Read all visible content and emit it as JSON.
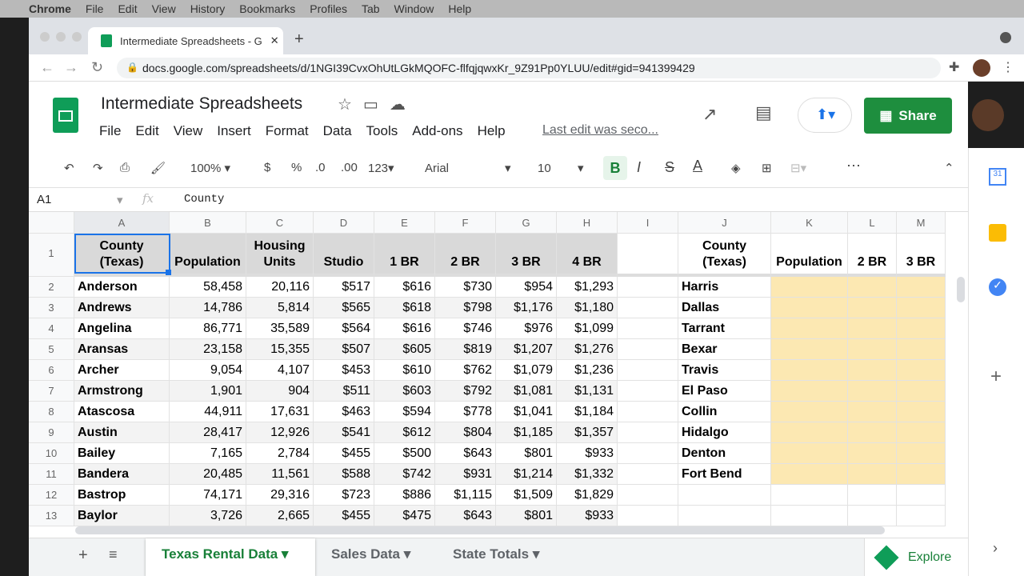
{
  "macos": {
    "apple": "",
    "menu": [
      "Chrome",
      "File",
      "Edit",
      "View",
      "History",
      "Bookmarks",
      "Profiles",
      "Tab",
      "Window",
      "Help"
    ]
  },
  "browser": {
    "tab_title": "Intermediate Spreadsheets - G",
    "url": "docs.google.com/spreadsheets/d/1NGI39CvxOhUtLGkMQOFC-flfqjqwxKr_9Z91Pp0YLUU/edit#gid=941399429"
  },
  "doc": {
    "title": "Intermediate Spreadsheets",
    "menu": [
      "File",
      "Edit",
      "View",
      "Insert",
      "Format",
      "Data",
      "Tools",
      "Add-ons",
      "Help"
    ],
    "last_edit": "Last edit was seco...",
    "share": "Share"
  },
  "toolbar": {
    "zoom": "100%",
    "currency": "$",
    "percent": "%",
    "dec_less": ".0",
    "dec_more": ".00",
    "format": "123",
    "font": "Arial",
    "size": "10",
    "bold": "B",
    "italic": "I",
    "strike": "S",
    "text_color": "A",
    "more": "⋯"
  },
  "formula_bar": {
    "cell_ref": "A1",
    "fx": "fx",
    "value": "County"
  },
  "columns": [
    "A",
    "B",
    "C",
    "D",
    "E",
    "F",
    "G",
    "H",
    "I",
    "J",
    "K",
    "L",
    "M"
  ],
  "header_row": [
    "County (Texas)",
    "Population",
    "Housing Units",
    "Studio",
    "1 BR",
    "2 BR",
    "3 BR",
    "4 BR",
    "",
    "County (Texas)",
    "Population",
    "2 BR",
    "3 BR"
  ],
  "rows": [
    [
      "2",
      "Anderson",
      "58,458",
      "20,116",
      "$517",
      "$616",
      "$730",
      "$954",
      "$1,293",
      "Harris"
    ],
    [
      "3",
      "Andrews",
      "14,786",
      "5,814",
      "$565",
      "$618",
      "$798",
      "$1,176",
      "$1,180",
      "Dallas"
    ],
    [
      "4",
      "Angelina",
      "86,771",
      "35,589",
      "$564",
      "$616",
      "$746",
      "$976",
      "$1,099",
      "Tarrant"
    ],
    [
      "5",
      "Aransas",
      "23,158",
      "15,355",
      "$507",
      "$605",
      "$819",
      "$1,207",
      "$1,276",
      "Bexar"
    ],
    [
      "6",
      "Archer",
      "9,054",
      "4,107",
      "$453",
      "$610",
      "$762",
      "$1,079",
      "$1,236",
      "Travis"
    ],
    [
      "7",
      "Armstrong",
      "1,901",
      "904",
      "$511",
      "$603",
      "$792",
      "$1,081",
      "$1,131",
      "El Paso"
    ],
    [
      "8",
      "Atascosa",
      "44,911",
      "17,631",
      "$463",
      "$594",
      "$778",
      "$1,041",
      "$1,184",
      "Collin"
    ],
    [
      "9",
      "Austin",
      "28,417",
      "12,926",
      "$541",
      "$612",
      "$804",
      "$1,185",
      "$1,357",
      "Hidalgo"
    ],
    [
      "10",
      "Bailey",
      "7,165",
      "2,784",
      "$455",
      "$500",
      "$643",
      "$801",
      "$933",
      "Denton"
    ],
    [
      "11",
      "Bandera",
      "20,485",
      "11,561",
      "$588",
      "$742",
      "$931",
      "$1,214",
      "$1,332",
      "Fort Bend"
    ],
    [
      "12",
      "Bastrop",
      "74,171",
      "29,316",
      "$723",
      "$886",
      "$1,115",
      "$1,509",
      "$1,829",
      ""
    ],
    [
      "13",
      "Baylor",
      "3,726",
      "2,665",
      "$455",
      "$475",
      "$643",
      "$801",
      "$933",
      ""
    ]
  ],
  "sheets": [
    {
      "label": "Texas Rental Data",
      "active": true
    },
    {
      "label": "Sales Data"
    },
    {
      "label": "State Totals"
    }
  ],
  "explore": "Explore",
  "colors": {
    "accent": "#1e8e3e",
    "highlight": "#fce8b2",
    "selection": "#1a73e8"
  }
}
